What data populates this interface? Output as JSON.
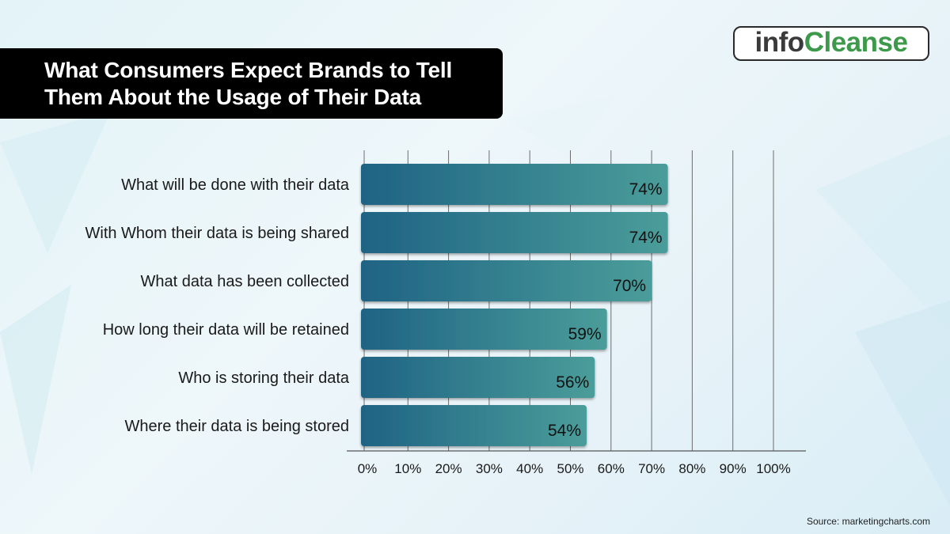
{
  "title": "What Consumers Expect Brands to Tell Them About the Usage of Their Data",
  "logo": {
    "part1": "info",
    "part2": "Cleanse"
  },
  "source": "Source: marketingcharts.com",
  "colors": {
    "bar_start": "#1f6384",
    "bar_end": "#4a9d9a",
    "grid": "#6d6d6d"
  },
  "chart_data": {
    "type": "bar",
    "orientation": "horizontal",
    "categories": [
      "What will be done with their data",
      "With Whom their data is being shared",
      "What data has been collected",
      "How long their data will be retained",
      "Who is storing their data",
      "Where their data is being stored"
    ],
    "values": [
      74,
      74,
      70,
      59,
      56,
      54
    ],
    "value_labels": [
      "74%",
      "74%",
      "70%",
      "59%",
      "56%",
      "54%"
    ],
    "xlim": [
      0,
      100
    ],
    "ticks": [
      "0%",
      "10%",
      "20%",
      "30%",
      "40%",
      "50%",
      "60%",
      "70%",
      "80%",
      "90%",
      "100%"
    ],
    "grid": true
  }
}
